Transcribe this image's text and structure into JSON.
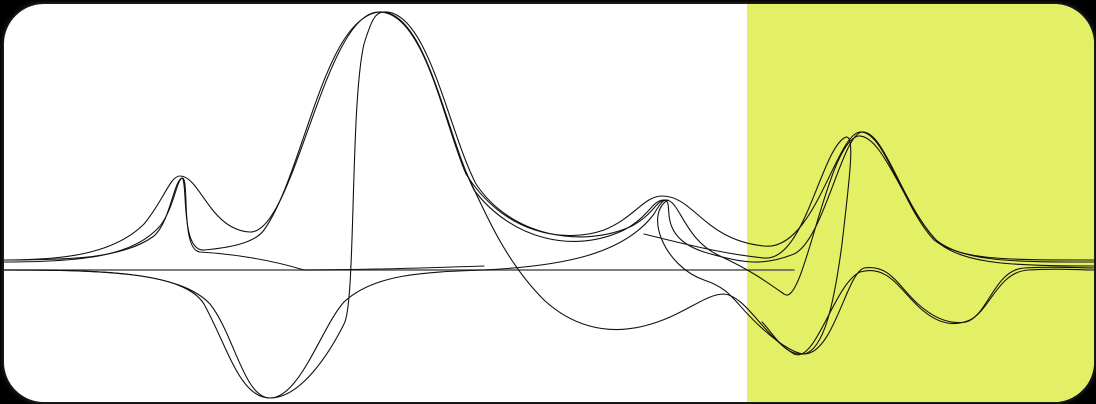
{
  "colors": {
    "background": "#000000",
    "panel": "#ffffff",
    "highlight": "#e3f065",
    "curve": "#111111",
    "baseline": "#555555"
  },
  "diagram": {
    "description_free": true,
    "curve_count": 7,
    "has_highlight_band": true,
    "highlight_side": "right"
  }
}
